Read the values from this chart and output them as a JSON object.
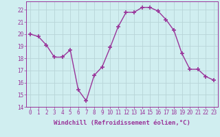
{
  "x": [
    0,
    1,
    2,
    3,
    4,
    5,
    6,
    7,
    8,
    9,
    10,
    11,
    12,
    13,
    14,
    15,
    16,
    17,
    18,
    19,
    20,
    21,
    22,
    23
  ],
  "y": [
    20.0,
    19.8,
    19.1,
    18.1,
    18.1,
    18.7,
    15.4,
    14.5,
    16.6,
    17.3,
    18.9,
    20.6,
    21.8,
    21.8,
    22.2,
    22.2,
    21.9,
    21.2,
    20.3,
    18.4,
    17.1,
    17.1,
    16.5,
    16.2
  ],
  "line_color": "#993399",
  "marker": "+",
  "marker_size": 4,
  "marker_lw": 1.2,
  "bg_color": "#d0eef0",
  "grid_color": "#b8d4d8",
  "xlabel": "Windchill (Refroidissement éolien,°C)",
  "xlim": [
    -0.5,
    23.5
  ],
  "ylim": [
    14,
    22.7
  ],
  "yticks": [
    14,
    15,
    16,
    17,
    18,
    19,
    20,
    21,
    22
  ],
  "xticks": [
    0,
    1,
    2,
    3,
    4,
    5,
    6,
    7,
    8,
    9,
    10,
    11,
    12,
    13,
    14,
    15,
    16,
    17,
    18,
    19,
    20,
    21,
    22,
    23
  ],
  "xtick_labels": [
    "0",
    "1",
    "2",
    "3",
    "4",
    "5",
    "6",
    "7",
    "8",
    "9",
    "10",
    "11",
    "12",
    "13",
    "14",
    "15",
    "16",
    "17",
    "18",
    "19",
    "20",
    "21",
    "22",
    "23"
  ],
  "tick_fontsize": 5.5,
  "xlabel_fontsize": 6.5,
  "tick_color": "#993399",
  "spine_color": "#993399",
  "line_width": 1.0
}
